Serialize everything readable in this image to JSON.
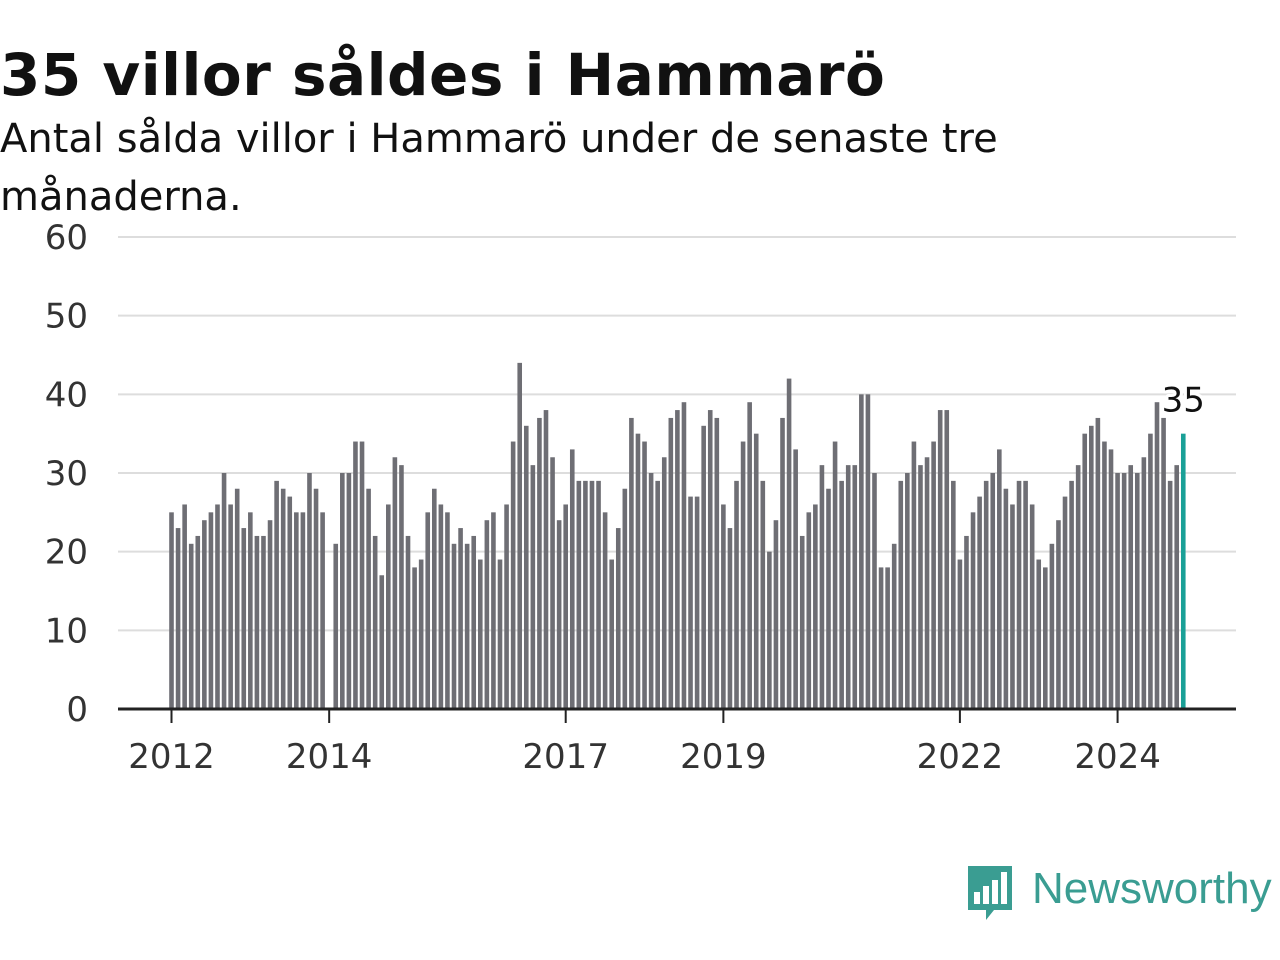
{
  "title": "35 villor såldes i Hammarö",
  "subtitle": "Antal sålda villor i Hammarö under de senaste tre månaderna.",
  "brand": {
    "name": "Newsworthy",
    "color": "#3a9d92"
  },
  "colors": {
    "bar": "#6e6e74",
    "highlight": "#1aa097",
    "grid": "#dddddd",
    "axis": "#222222"
  },
  "chart_data": {
    "type": "bar",
    "title": "35 villor såldes i Hammarö",
    "subtitle": "Antal sålda villor i Hammarö under de senaste tre månaderna.",
    "xlabel": "",
    "ylabel": "",
    "ylim": [
      0,
      60
    ],
    "yticks": [
      0,
      10,
      20,
      30,
      40,
      50,
      60
    ],
    "xticks": [
      {
        "label": "2012",
        "index": 0
      },
      {
        "label": "2014",
        "index": 24
      },
      {
        "label": "2017",
        "index": 60
      },
      {
        "label": "2019",
        "index": 84
      },
      {
        "label": "2022",
        "index": 120
      },
      {
        "label": "2024",
        "index": 144
      }
    ],
    "grid": true,
    "highlight": {
      "index": 154,
      "label": "35"
    },
    "values": [
      25,
      23,
      26,
      21,
      22,
      24,
      25,
      26,
      30,
      26,
      28,
      23,
      25,
      22,
      22,
      24,
      29,
      28,
      27,
      25,
      25,
      30,
      28,
      25,
      0,
      21,
      30,
      30,
      34,
      34,
      28,
      22,
      17,
      26,
      32,
      31,
      22,
      18,
      19,
      25,
      28,
      26,
      25,
      21,
      23,
      21,
      22,
      19,
      24,
      25,
      19,
      26,
      34,
      44,
      36,
      31,
      37,
      38,
      32,
      24,
      26,
      33,
      29,
      29,
      29,
      29,
      25,
      19,
      23,
      28,
      37,
      35,
      34,
      30,
      29,
      32,
      37,
      38,
      39,
      27,
      27,
      36,
      38,
      37,
      26,
      23,
      29,
      34,
      39,
      35,
      29,
      20,
      24,
      37,
      42,
      33,
      22,
      25,
      26,
      31,
      28,
      34,
      29,
      31,
      31,
      40,
      40,
      30,
      18,
      18,
      21,
      29,
      30,
      34,
      31,
      32,
      34,
      38,
      38,
      29,
      19,
      22,
      25,
      27,
      29,
      30,
      33,
      28,
      26,
      29,
      29,
      26,
      19,
      18,
      21,
      24,
      27,
      29,
      31,
      35,
      36,
      37,
      34,
      33,
      30,
      30,
      31,
      30,
      32,
      35,
      39,
      37,
      29,
      31,
      35
    ]
  }
}
